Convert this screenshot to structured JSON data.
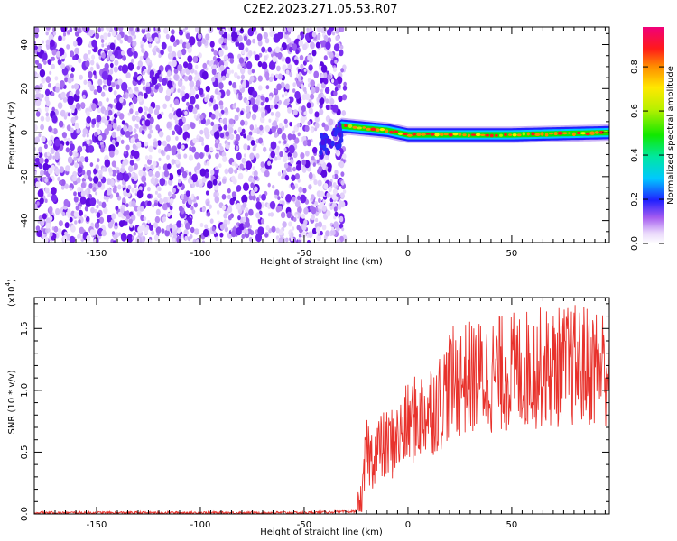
{
  "title": "C2E2.2023.271.05.53.R07",
  "colors": {
    "axis": "#000000",
    "snr_line": "#e8322c",
    "scatter_purple": "#6a12e8"
  },
  "chart_data": [
    {
      "type": "heatmap",
      "xlabel": "Height of straight line (km)",
      "ylabel": "Frequency (Hz)",
      "xlim": [
        -180,
        97
      ],
      "ylim": [
        -50,
        48
      ],
      "xticks": [
        -150,
        -100,
        -50,
        0,
        50
      ],
      "yticks": [
        -40,
        -20,
        0,
        20,
        40
      ],
      "grid": false,
      "noise_region": {
        "x": [
          -180,
          -32
        ],
        "y": [
          -50,
          48
        ],
        "dominant_color": "purple"
      },
      "carrier": {
        "description_points": [
          {
            "x": -40,
            "freq": -2
          },
          {
            "x": -32,
            "freq": 3
          },
          {
            "x": -10,
            "freq": 1
          },
          {
            "x": 0,
            "freq": -1
          },
          {
            "x": 50,
            "freq": -1
          },
          {
            "x": 97,
            "freq": 0
          }
        ],
        "band_half_width_hz": 3
      },
      "colorbar": {
        "label": "Normalized spectral amplitude",
        "range": [
          0,
          0.98
        ],
        "ticks": [
          0.0,
          0.2,
          0.4,
          0.6,
          0.8
        ],
        "tick_labels": [
          "0.0",
          "0.2",
          "0.4",
          "0.6",
          "0.8"
        ]
      }
    },
    {
      "type": "line",
      "xlabel": "Height of straight line (km)",
      "ylabel": "SNR (10 * v/v)",
      "y_multiplier_label": "(x10",
      "y_multiplier_exp": "4",
      "xlim": [
        -180,
        97
      ],
      "ylim": [
        0,
        1.75
      ],
      "xticks": [
        -150,
        -100,
        -50,
        0,
        50
      ],
      "yticks": [
        0.0,
        0.5,
        1.0,
        1.5
      ],
      "ytick_labels": [
        "0.0",
        "0.5",
        "1.0",
        "1.5"
      ],
      "grid": false,
      "series": [
        {
          "x": [
            -180,
            -150,
            -100,
            -50,
            -25,
            -22,
            -20,
            -18,
            -15,
            -10,
            -5,
            0,
            5,
            10,
            15,
            20,
            25,
            30,
            40,
            50,
            60,
            70,
            80,
            90,
            97
          ],
          "values": [
            0.01,
            0.01,
            0.01,
            0.01,
            0.02,
            0.1,
            0.55,
            0.45,
            0.52,
            0.55,
            0.6,
            0.72,
            0.78,
            0.85,
            0.9,
            1.05,
            1.08,
            1.1,
            1.12,
            1.15,
            1.18,
            1.18,
            1.2,
            1.2,
            1.2
          ]
        }
      ]
    }
  ]
}
